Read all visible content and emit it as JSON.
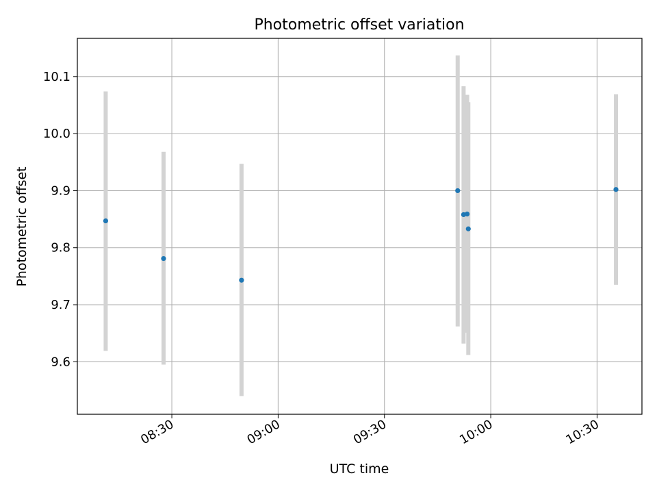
{
  "chart_data": {
    "type": "scatter",
    "title": "Photometric offset variation",
    "xlabel": "UTC time",
    "ylabel": "Photometric offset",
    "x_ticks": [
      "08:30",
      "09:00",
      "09:30",
      "10:00",
      "10:30"
    ],
    "y_ticks": [
      "9.6",
      "9.7",
      "9.8",
      "9.9",
      "10.0",
      "10.1"
    ],
    "xlim": [
      "08:03:20",
      "10:42:40"
    ],
    "ylim": [
      9.508,
      10.167
    ],
    "grid": true,
    "points": [
      {
        "x": "08:11:20",
        "y": 9.847,
        "err_low": 9.619,
        "err_high": 10.074
      },
      {
        "x": "08:27:40",
        "y": 9.781,
        "err_low": 9.595,
        "err_high": 9.968
      },
      {
        "x": "08:49:40",
        "y": 9.743,
        "err_low": 9.54,
        "err_high": 9.947
      },
      {
        "x": "09:50:40",
        "y": 9.9,
        "err_low": 9.662,
        "err_high": 10.137
      },
      {
        "x": "09:52:20",
        "y": 9.858,
        "err_low": 9.632,
        "err_high": 10.083
      },
      {
        "x": "09:53:20",
        "y": 9.859,
        "err_low": 9.651,
        "err_high": 10.068
      },
      {
        "x": "09:53:40",
        "y": 9.833,
        "err_low": 9.612,
        "err_high": 10.055
      },
      {
        "x": "10:35:20",
        "y": 9.902,
        "err_low": 9.735,
        "err_high": 10.069
      }
    ],
    "colors": {
      "point": "#1f77b4",
      "errorbar": "#d3d3d3",
      "grid": "#b0b0b0",
      "axis": "#000000"
    }
  }
}
